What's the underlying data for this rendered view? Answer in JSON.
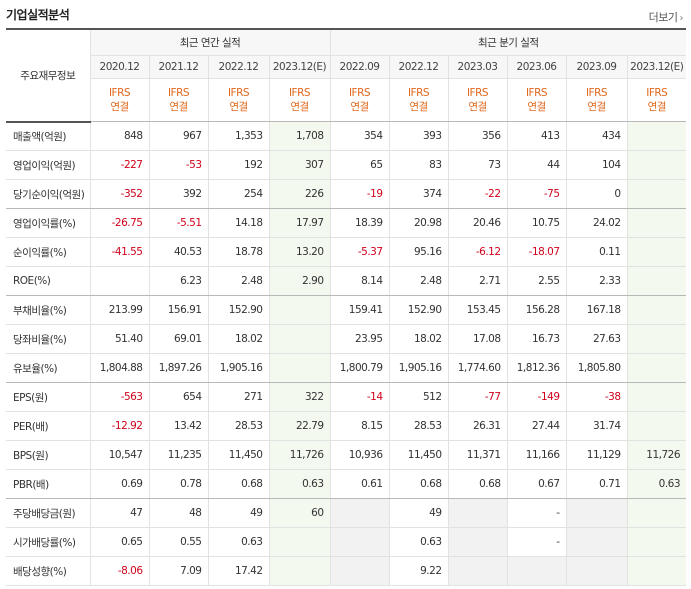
{
  "section_title": "기업실적분석",
  "more_label": "더보기",
  "corner_label": "주요재무정보",
  "group_annual": "최근 연간 실적",
  "group_quarter": "최근 분기 실적",
  "columns": [
    "2020.12",
    "2021.12",
    "2022.12",
    "2023.12(E)",
    "2022.09",
    "2022.12",
    "2023.03",
    "2023.06",
    "2023.09",
    "2023.12(E)"
  ],
  "ifrs_top": "IFRS",
  "ifrs_bottom": "연결",
  "rows": [
    {
      "label": "매출액(억원)",
      "values": [
        "848",
        "967",
        "1,353",
        "1,708",
        "354",
        "393",
        "356",
        "413",
        "434",
        ""
      ]
    },
    {
      "label": "영업이익(억원)",
      "values": [
        "-227",
        "-53",
        "192",
        "307",
        "65",
        "83",
        "73",
        "44",
        "104",
        ""
      ]
    },
    {
      "label": "당기순이익(억원)",
      "values": [
        "-352",
        "392",
        "254",
        "226",
        "-19",
        "374",
        "-22",
        "-75",
        "0",
        ""
      ]
    },
    {
      "label": "영업이익률(%)",
      "values": [
        "-26.75",
        "-5.51",
        "14.18",
        "17.97",
        "18.39",
        "20.98",
        "20.46",
        "10.75",
        "24.02",
        ""
      ]
    },
    {
      "label": "순이익률(%)",
      "values": [
        "-41.55",
        "40.53",
        "18.78",
        "13.20",
        "-5.37",
        "95.16",
        "-6.12",
        "-18.07",
        "0.11",
        ""
      ]
    },
    {
      "label": "ROE(%)",
      "values": [
        "",
        "6.23",
        "2.48",
        "2.90",
        "8.14",
        "2.48",
        "2.71",
        "2.55",
        "2.33",
        ""
      ]
    },
    {
      "label": "부채비율(%)",
      "values": [
        "213.99",
        "156.91",
        "152.90",
        "",
        "159.41",
        "152.90",
        "153.45",
        "156.28",
        "167.18",
        ""
      ]
    },
    {
      "label": "당좌비율(%)",
      "values": [
        "51.40",
        "69.01",
        "18.02",
        "",
        "23.95",
        "18.02",
        "17.08",
        "16.73",
        "27.63",
        ""
      ]
    },
    {
      "label": "유보율(%)",
      "values": [
        "1,804.88",
        "1,897.26",
        "1,905.16",
        "",
        "1,800.79",
        "1,905.16",
        "1,774.60",
        "1,812.36",
        "1,805.80",
        ""
      ]
    },
    {
      "label": "EPS(원)",
      "values": [
        "-563",
        "654",
        "271",
        "322",
        "-14",
        "512",
        "-77",
        "-149",
        "-38",
        ""
      ]
    },
    {
      "label": "PER(배)",
      "values": [
        "-12.92",
        "13.42",
        "28.53",
        "22.79",
        "8.15",
        "28.53",
        "26.31",
        "27.44",
        "31.74",
        ""
      ]
    },
    {
      "label": "BPS(원)",
      "values": [
        "10,547",
        "11,235",
        "11,450",
        "11,726",
        "10,936",
        "11,450",
        "11,371",
        "11,166",
        "11,129",
        "11,726"
      ]
    },
    {
      "label": "PBR(배)",
      "values": [
        "0.69",
        "0.78",
        "0.68",
        "0.63",
        "0.61",
        "0.68",
        "0.68",
        "0.67",
        "0.71",
        "0.63"
      ]
    },
    {
      "label": "주당배당금(원)",
      "values": [
        "47",
        "48",
        "49",
        "60",
        "",
        "49",
        "",
        "-",
        "",
        ""
      ]
    },
    {
      "label": "시가배당률(%)",
      "values": [
        "0.65",
        "0.55",
        "0.63",
        "",
        "",
        "0.63",
        "",
        "-",
        "",
        ""
      ]
    },
    {
      "label": "배당성향(%)",
      "values": [
        "-8.06",
        "7.09",
        "17.42",
        "",
        "",
        "9.22",
        "",
        "",
        "",
        ""
      ]
    }
  ],
  "colors": {
    "negative": "#d0021b",
    "ifrs": "#e0671c",
    "estimate_bg": "#f4f9ef",
    "empty_bg": "#f2f2f2"
  }
}
